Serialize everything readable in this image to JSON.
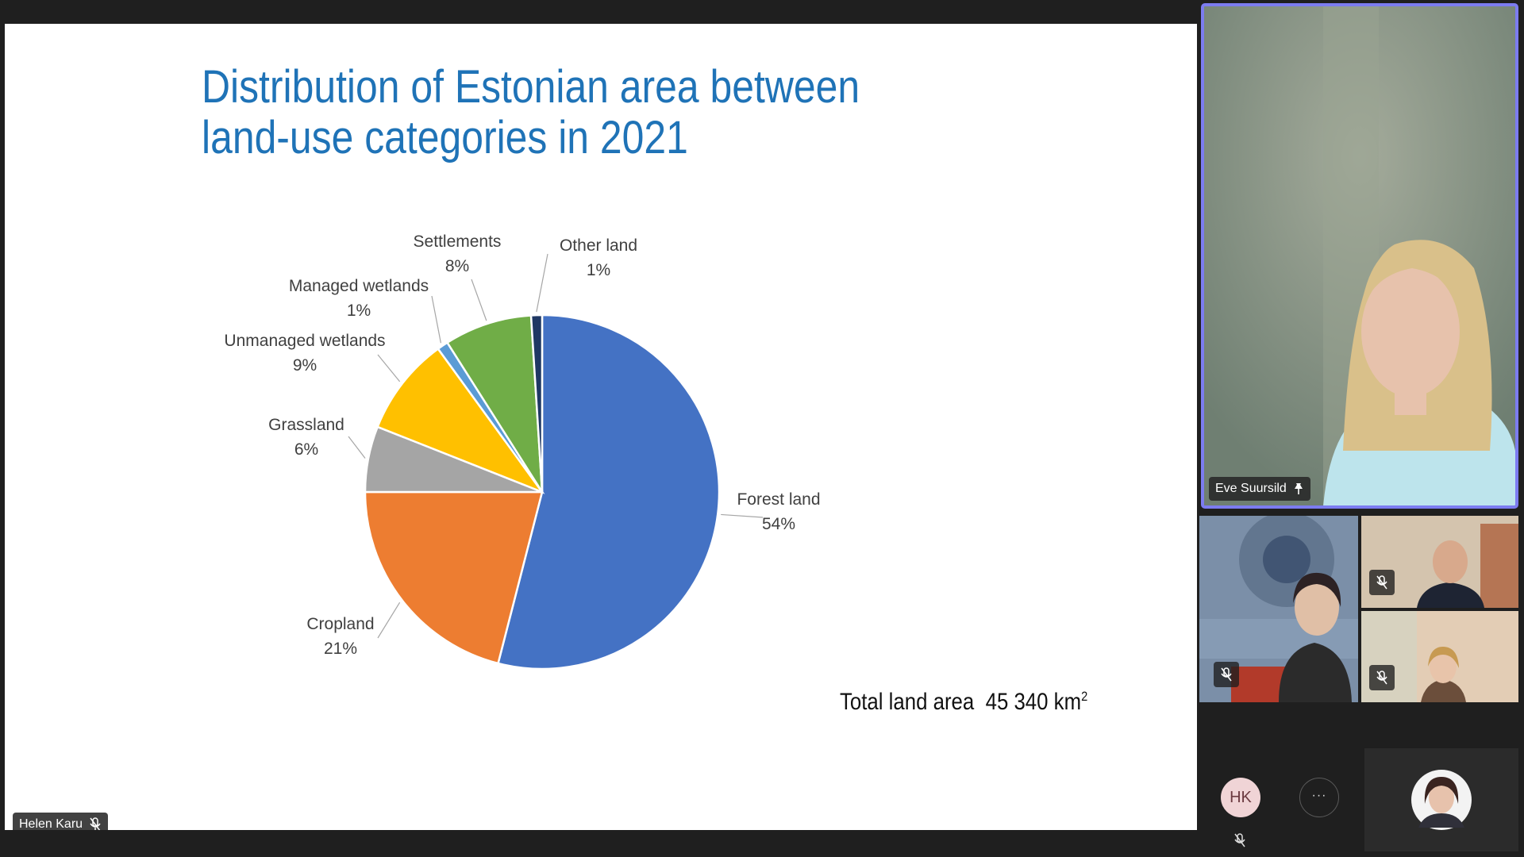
{
  "slide": {
    "title": "Distribution of Estonian area between land-use categories in 2021",
    "total_area_label": "Total land area",
    "total_area_value": "45 340 km",
    "total_area_unit_exp": "2"
  },
  "chart_data": {
    "type": "pie",
    "title": "Distribution of Estonian area between land-use categories in 2021",
    "slices": [
      {
        "label": "Forest land",
        "value": 54,
        "pct_label": "54%",
        "color": "#4472c4"
      },
      {
        "label": "Cropland",
        "value": 21,
        "pct_label": "21%",
        "color": "#ed7d31"
      },
      {
        "label": "Grassland",
        "value": 6,
        "pct_label": "6%",
        "color": "#a5a5a5"
      },
      {
        "label": "Unmanaged wetlands",
        "value": 9,
        "pct_label": "9%",
        "color": "#ffc000"
      },
      {
        "label": "Managed wetlands",
        "value": 1,
        "pct_label": "1%",
        "color": "#5b9bd5"
      },
      {
        "label": "Settlements",
        "value": 8,
        "pct_label": "8%",
        "color": "#70ad47"
      },
      {
        "label": "Other land",
        "value": 1,
        "pct_label": "1%",
        "color": "#1f3864"
      }
    ]
  },
  "participants": {
    "presenter_name": "Helen Karu",
    "speaker_name": "Eve Suursild",
    "avatar_initials": "HK",
    "more_label": "···"
  },
  "colors": {
    "accent": "#7c7cf0",
    "title": "#1f73b7"
  }
}
